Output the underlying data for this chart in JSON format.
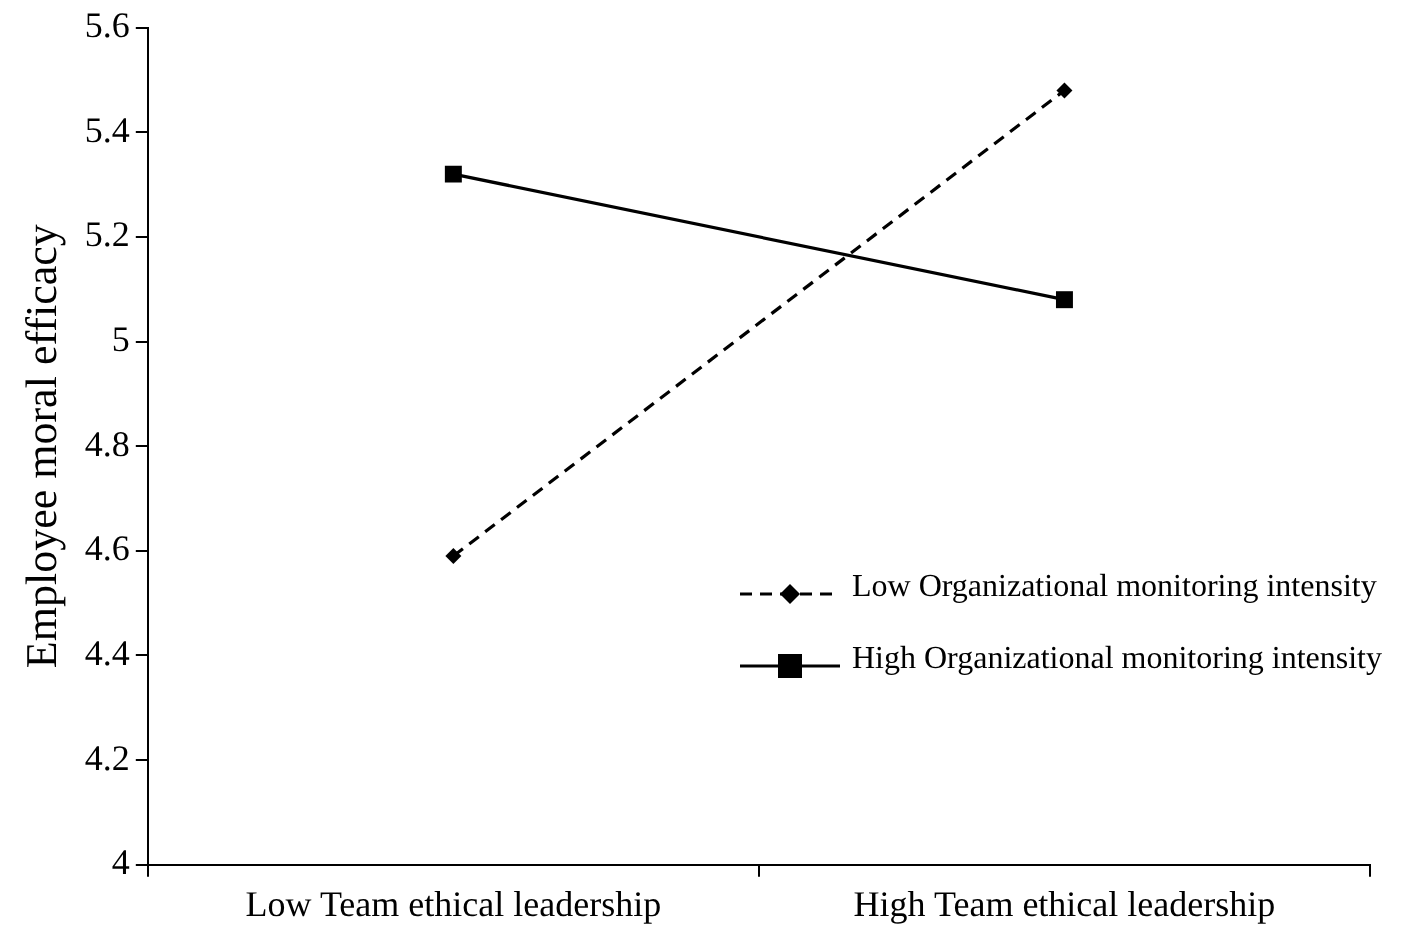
{
  "chart_data": {
    "type": "line",
    "ylabel": "Employee moral efficacy",
    "categories": [
      "Low Team ethical leadership",
      "High Team ethical leadership"
    ],
    "series": [
      {
        "name": "Low Organizational monitoring intensity",
        "color": "#000000",
        "values": [
          4.59,
          5.48
        ],
        "marker": "diamond",
        "line_style": "dashed"
      },
      {
        "name": "High Organizational monitoring intensity",
        "color": "#000000",
        "values": [
          5.32,
          5.08
        ],
        "marker": "square",
        "line_style": "solid"
      }
    ],
    "ylim": [
      4,
      5.6
    ],
    "yticks": [
      4,
      4.2,
      4.4,
      4.6,
      4.8,
      5,
      5.2,
      5.4,
      5.6
    ],
    "grid": false,
    "legend": "right"
  }
}
